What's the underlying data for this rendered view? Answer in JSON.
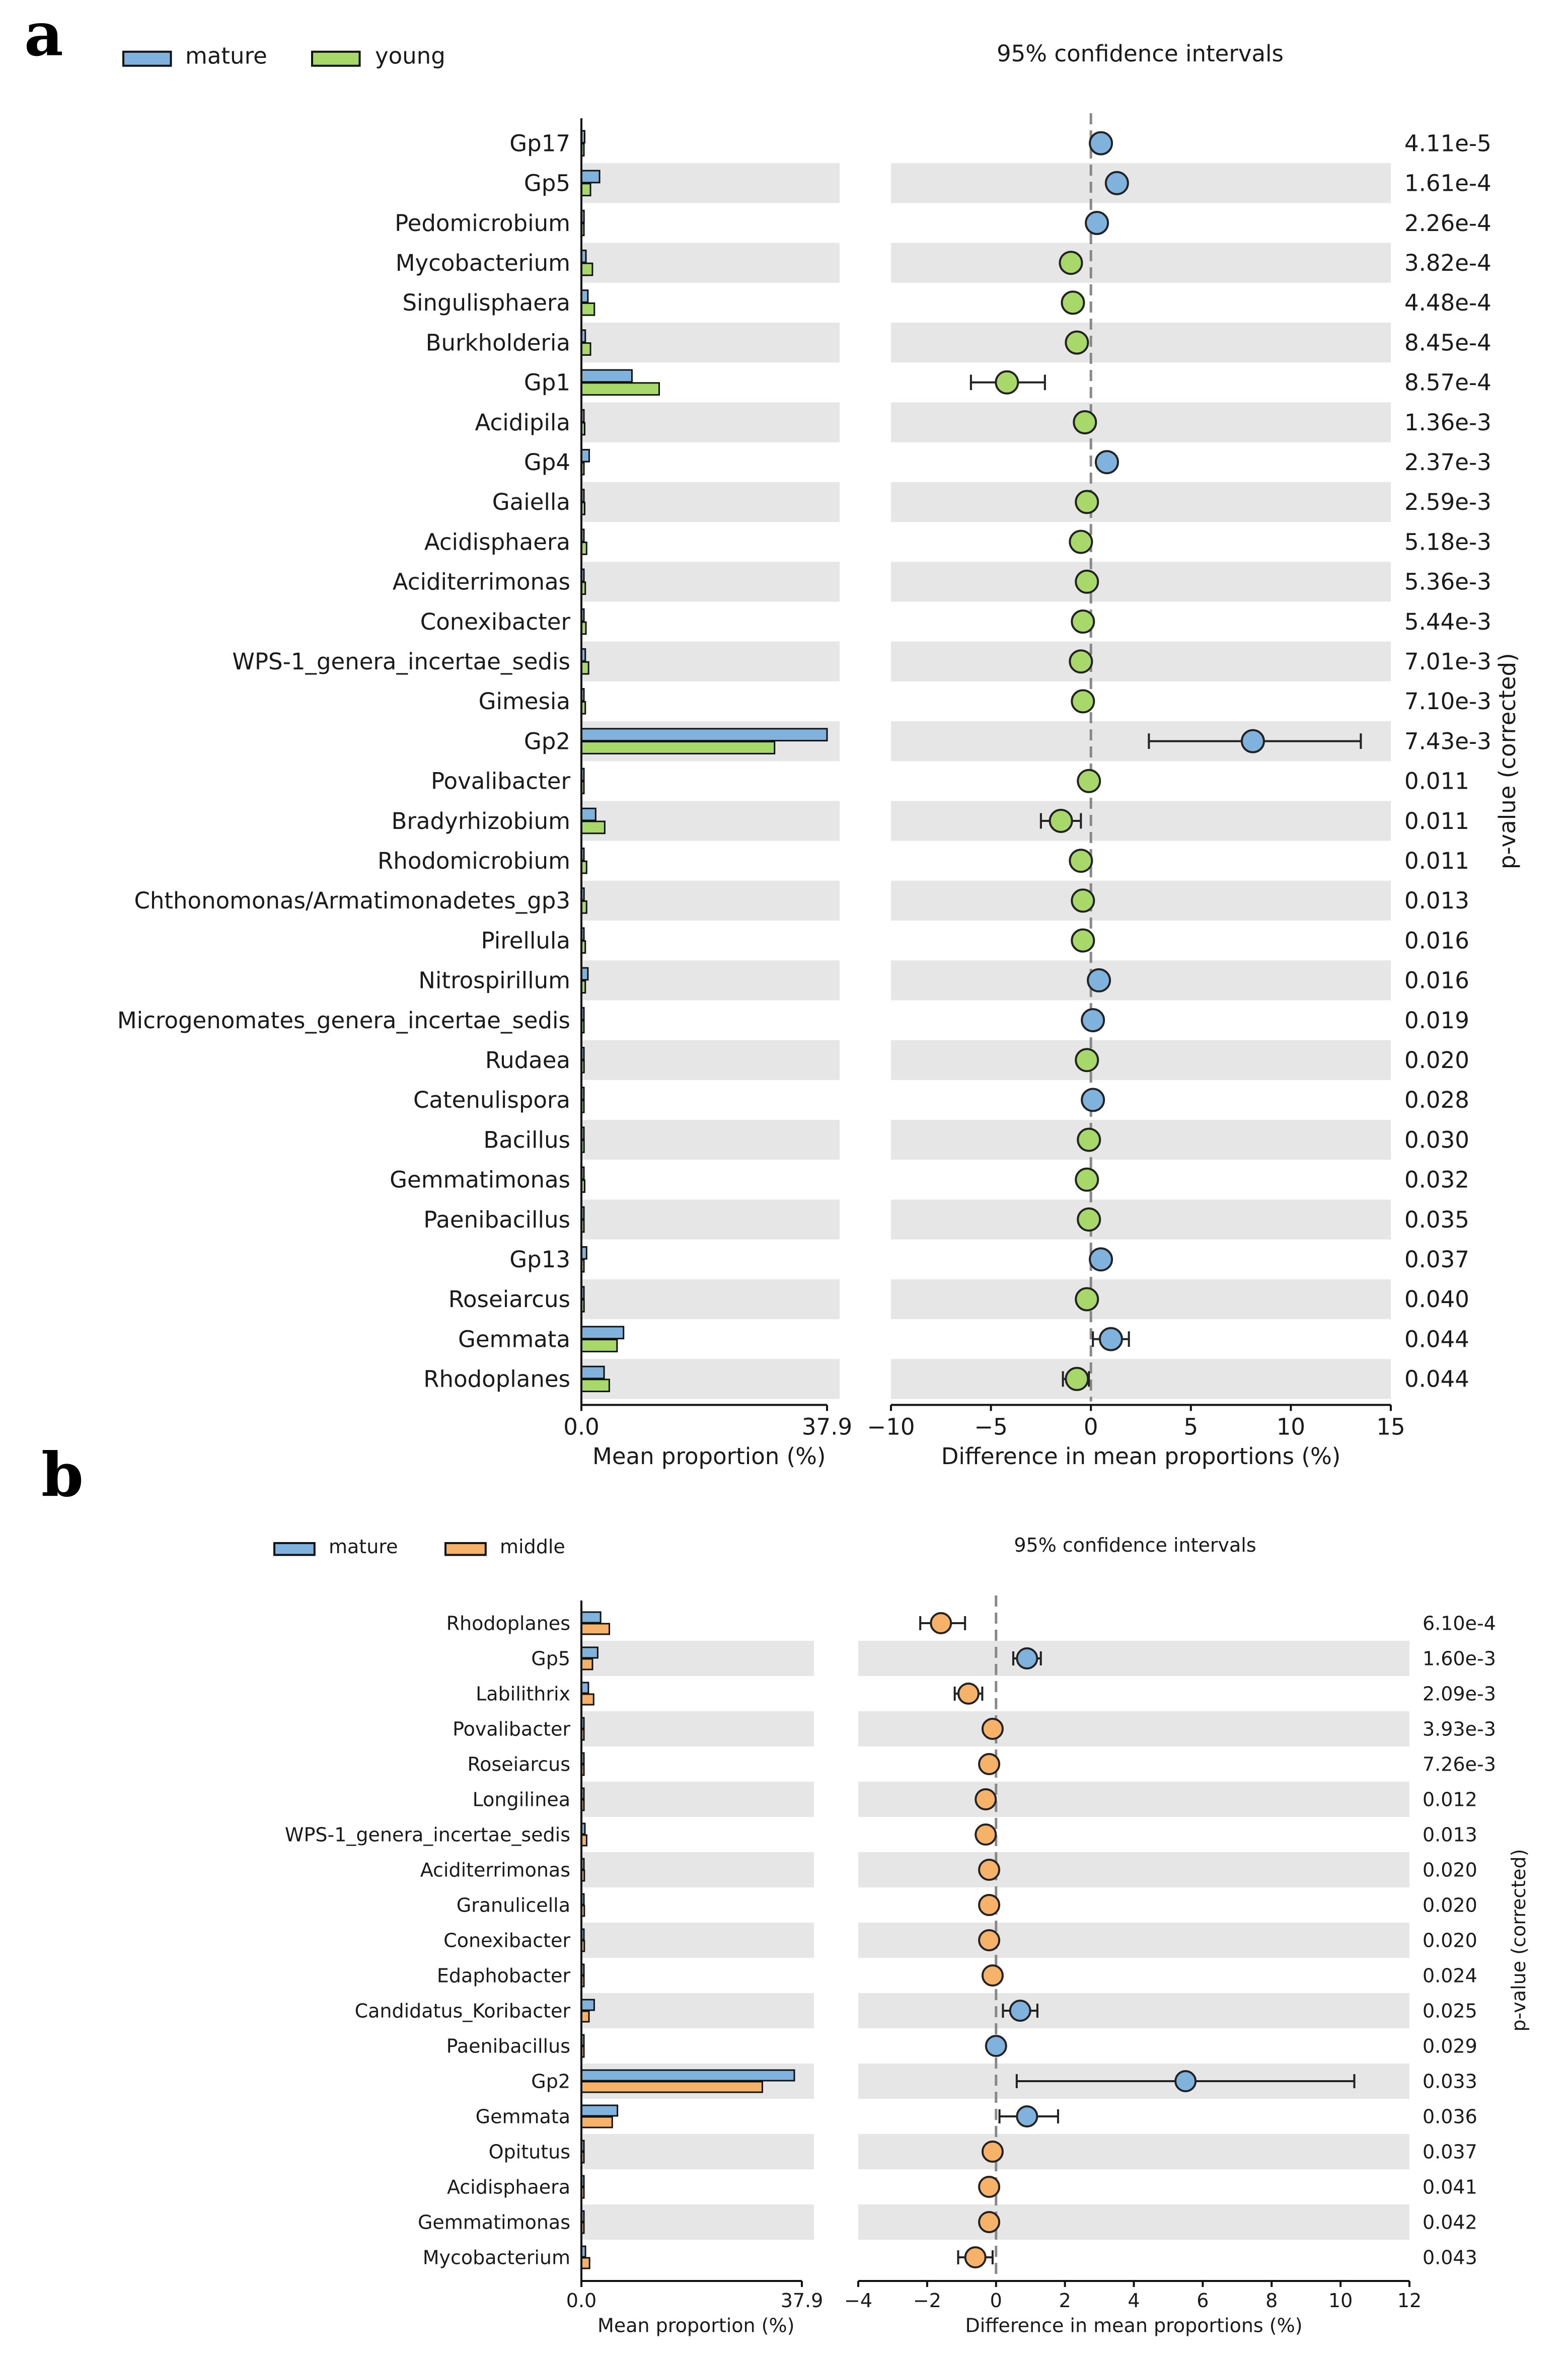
{
  "chart_data": [
    {
      "panel": "a",
      "type": "extended_error_bar",
      "legend": [
        {
          "name": "mature",
          "color": "#7fb2dc"
        },
        {
          "name": "young",
          "color": "#a8d86a"
        }
      ],
      "left_xlabel": "Mean proportion (%)",
      "left_ticks": [
        "0.0",
        "37.9"
      ],
      "left_xmax": 37.9,
      "right_title": "95% confidence intervals",
      "right_xlabel": "Difference in mean proportions (%)",
      "right_xlim": [
        -10,
        15
      ],
      "right_ticks": [
        "−10",
        "−5",
        "0",
        "5",
        "10",
        "15"
      ],
      "pvalue_label": "p-value (corrected)",
      "rows": [
        {
          "taxon": "Gp17",
          "mature": 0.5,
          "other": 0.2,
          "diff": 0.5,
          "lo": 0.4,
          "hi": 0.6,
          "p": "4.11e-5"
        },
        {
          "taxon": "Gp5",
          "mature": 2.8,
          "other": 1.4,
          "diff": 1.3,
          "lo": 1.1,
          "hi": 1.5,
          "p": "1.61e-4"
        },
        {
          "taxon": "Pedomicrobium",
          "mature": 0.4,
          "other": 0.2,
          "diff": 0.3,
          "lo": 0.2,
          "hi": 0.4,
          "p": "2.26e-4"
        },
        {
          "taxon": "Mycobacterium",
          "mature": 0.7,
          "other": 1.7,
          "diff": -1.0,
          "lo": -1.2,
          "hi": -0.8,
          "p": "3.82e-4"
        },
        {
          "taxon": "Singulisphaera",
          "mature": 1.0,
          "other": 2.0,
          "diff": -0.9,
          "lo": -1.1,
          "hi": -0.7,
          "p": "4.48e-4"
        },
        {
          "taxon": "Burkholderia",
          "mature": 0.6,
          "other": 1.4,
          "diff": -0.7,
          "lo": -0.9,
          "hi": -0.5,
          "p": "8.45e-4"
        },
        {
          "taxon": "Gp1",
          "mature": 7.8,
          "other": 12.0,
          "diff": -4.2,
          "lo": -6.0,
          "hi": -2.3,
          "p": "8.57e-4"
        },
        {
          "taxon": "Acidipila",
          "mature": 0.2,
          "other": 0.5,
          "diff": -0.3,
          "lo": -0.4,
          "hi": -0.2,
          "p": "1.36e-3"
        },
        {
          "taxon": "Gp4",
          "mature": 1.2,
          "other": 0.3,
          "diff": 0.8,
          "lo": 0.6,
          "hi": 1.0,
          "p": "2.37e-3"
        },
        {
          "taxon": "Gaiella",
          "mature": 0.3,
          "other": 0.5,
          "diff": -0.2,
          "lo": -0.3,
          "hi": -0.1,
          "p": "2.59e-3"
        },
        {
          "taxon": "Acidisphaera",
          "mature": 0.3,
          "other": 0.8,
          "diff": -0.5,
          "lo": -0.6,
          "hi": -0.4,
          "p": "5.18e-3"
        },
        {
          "taxon": "Aciditerrimonas",
          "mature": 0.3,
          "other": 0.6,
          "diff": -0.2,
          "lo": -0.3,
          "hi": -0.1,
          "p": "5.36e-3"
        },
        {
          "taxon": "Conexibacter",
          "mature": 0.3,
          "other": 0.7,
          "diff": -0.4,
          "lo": -0.5,
          "hi": -0.3,
          "p": "5.44e-3"
        },
        {
          "taxon": "WPS-1_genera_incertae_sedis",
          "mature": 0.6,
          "other": 1.1,
          "diff": -0.5,
          "lo": -0.6,
          "hi": -0.4,
          "p": "7.01e-3"
        },
        {
          "taxon": "Gimesia",
          "mature": 0.2,
          "other": 0.6,
          "diff": -0.4,
          "lo": -0.5,
          "hi": -0.3,
          "p": "7.10e-3"
        },
        {
          "taxon": "Gp2",
          "mature": 37.9,
          "other": 29.8,
          "diff": 8.1,
          "lo": 2.9,
          "hi": 13.5,
          "p": "7.43e-3"
        },
        {
          "taxon": "Povalibacter",
          "mature": 0.1,
          "other": 0.3,
          "diff": -0.1,
          "lo": -0.2,
          "hi": 0.0,
          "p": "0.011"
        },
        {
          "taxon": "Bradyrhizobium",
          "mature": 2.2,
          "other": 3.6,
          "diff": -1.5,
          "lo": -2.5,
          "hi": -0.5,
          "p": "0.011"
        },
        {
          "taxon": "Rhodomicrobium",
          "mature": 0.3,
          "other": 0.8,
          "diff": -0.5,
          "lo": -0.6,
          "hi": -0.4,
          "p": "0.011"
        },
        {
          "taxon": "Chthonomonas/Armatimonadetes_gp3",
          "mature": 0.4,
          "other": 0.8,
          "diff": -0.4,
          "lo": -0.5,
          "hi": -0.3,
          "p": "0.013"
        },
        {
          "taxon": "Pirellula",
          "mature": 0.2,
          "other": 0.6,
          "diff": -0.4,
          "lo": -0.5,
          "hi": -0.3,
          "p": "0.016"
        },
        {
          "taxon": "Nitrospirillum",
          "mature": 1.0,
          "other": 0.6,
          "diff": 0.4,
          "lo": 0.3,
          "hi": 0.5,
          "p": "0.016"
        },
        {
          "taxon": "Microgenomates_genera_incertae_sedis",
          "mature": 0.2,
          "other": 0.1,
          "diff": 0.1,
          "lo": 0.0,
          "hi": 0.2,
          "p": "0.019"
        },
        {
          "taxon": "Rudaea",
          "mature": 0.2,
          "other": 0.4,
          "diff": -0.2,
          "lo": -0.3,
          "hi": -0.1,
          "p": "0.020"
        },
        {
          "taxon": "Catenulispora",
          "mature": 0.2,
          "other": 0.1,
          "diff": 0.1,
          "lo": 0.0,
          "hi": 0.2,
          "p": "0.028"
        },
        {
          "taxon": "Bacillus",
          "mature": 0.2,
          "other": 0.4,
          "diff": -0.1,
          "lo": -0.2,
          "hi": 0.0,
          "p": "0.030"
        },
        {
          "taxon": "Gemmatimonas",
          "mature": 0.3,
          "other": 0.5,
          "diff": -0.2,
          "lo": -0.3,
          "hi": -0.1,
          "p": "0.032"
        },
        {
          "taxon": "Paenibacillus",
          "mature": 0.2,
          "other": 0.3,
          "diff": -0.1,
          "lo": -0.2,
          "hi": 0.0,
          "p": "0.035"
        },
        {
          "taxon": "Gp13",
          "mature": 0.8,
          "other": 0.3,
          "diff": 0.5,
          "lo": 0.4,
          "hi": 0.6,
          "p": "0.037"
        },
        {
          "taxon": "Roseiarcus",
          "mature": 0.2,
          "other": 0.4,
          "diff": -0.2,
          "lo": -0.3,
          "hi": -0.1,
          "p": "0.040"
        },
        {
          "taxon": "Gemmata",
          "mature": 6.5,
          "other": 5.5,
          "diff": 1.0,
          "lo": 0.1,
          "hi": 1.9,
          "p": "0.044"
        },
        {
          "taxon": "Rhodoplanes",
          "mature": 3.5,
          "other": 4.3,
          "diff": -0.7,
          "lo": -1.4,
          "hi": -0.1,
          "p": "0.044"
        }
      ]
    },
    {
      "panel": "b",
      "type": "extended_error_bar",
      "legend": [
        {
          "name": "mature",
          "color": "#7fb2dc"
        },
        {
          "name": "middle",
          "color": "#f7b26a"
        }
      ],
      "left_xlabel": "Mean proportion (%)",
      "left_ticks": [
        "0.0",
        "37.9"
      ],
      "left_xmax": 37.9,
      "right_title": "95% confidence intervals",
      "right_xlabel": "Difference in mean proportions (%)",
      "right_xlim": [
        -4,
        12
      ],
      "right_ticks": [
        "−4",
        "−2",
        "0",
        "2",
        "4",
        "6",
        "8",
        "10",
        "12"
      ],
      "pvalue_label": "p-value (corrected)",
      "rows": [
        {
          "taxon": "Rhodoplanes",
          "mature": 3.3,
          "other": 4.8,
          "diff": -1.6,
          "lo": -2.2,
          "hi": -0.9,
          "p": "6.10e-4"
        },
        {
          "taxon": "Gp5",
          "mature": 2.8,
          "other": 1.9,
          "diff": 0.9,
          "lo": 0.5,
          "hi": 1.3,
          "p": "1.60e-3"
        },
        {
          "taxon": "Labilithrix",
          "mature": 1.2,
          "other": 2.1,
          "diff": -0.8,
          "lo": -1.2,
          "hi": -0.4,
          "p": "2.09e-3"
        },
        {
          "taxon": "Povalibacter",
          "mature": 0.1,
          "other": 0.3,
          "diff": -0.1,
          "lo": -0.2,
          "hi": 0.0,
          "p": "3.93e-3"
        },
        {
          "taxon": "Roseiarcus",
          "mature": 0.2,
          "other": 0.4,
          "diff": -0.2,
          "lo": -0.3,
          "hi": -0.1,
          "p": "7.26e-3"
        },
        {
          "taxon": "Longilinea",
          "mature": 0.1,
          "other": 0.4,
          "diff": -0.3,
          "lo": -0.4,
          "hi": -0.2,
          "p": "0.012"
        },
        {
          "taxon": "WPS-1_genera_incertae_sedis",
          "mature": 0.6,
          "other": 0.9,
          "diff": -0.3,
          "lo": -0.4,
          "hi": -0.2,
          "p": "0.013"
        },
        {
          "taxon": "Aciditerrimonas",
          "mature": 0.3,
          "other": 0.5,
          "diff": -0.2,
          "lo": -0.3,
          "hi": -0.1,
          "p": "0.020"
        },
        {
          "taxon": "Granulicella",
          "mature": 0.3,
          "other": 0.5,
          "diff": -0.2,
          "lo": -0.3,
          "hi": -0.1,
          "p": "0.020"
        },
        {
          "taxon": "Conexibacter",
          "mature": 0.3,
          "other": 0.5,
          "diff": -0.2,
          "lo": -0.3,
          "hi": -0.1,
          "p": "0.020"
        },
        {
          "taxon": "Edaphobacter",
          "mature": 0.1,
          "other": 0.3,
          "diff": -0.1,
          "lo": -0.2,
          "hi": 0.0,
          "p": "0.024"
        },
        {
          "taxon": "Candidatus_Koribacter",
          "mature": 2.2,
          "other": 1.3,
          "diff": 0.7,
          "lo": 0.2,
          "hi": 1.2,
          "p": "0.025"
        },
        {
          "taxon": "Paenibacillus",
          "mature": 0.1,
          "other": 0.2,
          "diff": 0.0,
          "lo": -0.1,
          "hi": 0.1,
          "p": "0.029"
        },
        {
          "taxon": "Gp2",
          "mature": 36.6,
          "other": 31.1,
          "diff": 5.5,
          "lo": 0.6,
          "hi": 10.4,
          "p": "0.033"
        },
        {
          "taxon": "Gemmata",
          "mature": 6.2,
          "other": 5.3,
          "diff": 0.9,
          "lo": 0.1,
          "hi": 1.8,
          "p": "0.036"
        },
        {
          "taxon": "Opitutus",
          "mature": 0.1,
          "other": 0.2,
          "diff": -0.1,
          "lo": -0.2,
          "hi": 0.0,
          "p": "0.037"
        },
        {
          "taxon": "Acidisphaera",
          "mature": 0.2,
          "other": 0.4,
          "diff": -0.2,
          "lo": -0.3,
          "hi": -0.1,
          "p": "0.041"
        },
        {
          "taxon": "Gemmatimonas",
          "mature": 0.2,
          "other": 0.4,
          "diff": -0.2,
          "lo": -0.3,
          "hi": -0.1,
          "p": "0.042"
        },
        {
          "taxon": "Mycobacterium",
          "mature": 0.7,
          "other": 1.4,
          "diff": -0.6,
          "lo": -1.1,
          "hi": -0.1,
          "p": "0.043"
        }
      ]
    }
  ]
}
